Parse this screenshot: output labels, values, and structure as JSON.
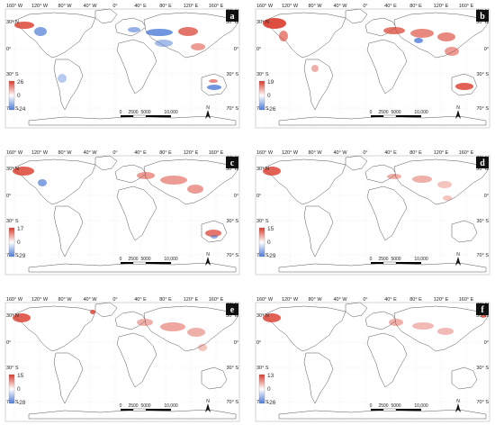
{
  "top_lon_labels": [
    "160° W",
    "120° W",
    "80° W",
    "40° W",
    "0°",
    "40° E",
    "80° E",
    "120° E",
    "160° E"
  ],
  "left_lat_labels": [
    "30° N",
    "0°",
    "30° S",
    "70° S"
  ],
  "right_lat_labels": [
    "70° N",
    "30° N",
    "0°",
    "30° S",
    "70° S"
  ],
  "scale_labels": [
    "0",
    "2500",
    "5000",
    "10,000"
  ],
  "north_label": "N",
  "colors": {
    "positive": "#d93a2b",
    "negative": "#4d7bd6",
    "land_outline": "#555555"
  },
  "panels": [
    {
      "id": "a",
      "letter": "a",
      "legend": {
        "max": "26",
        "mid": "0",
        "min": "-24"
      }
    },
    {
      "id": "b",
      "letter": "b",
      "legend": {
        "max": "19",
        "mid": "0",
        "min": "-26"
      }
    },
    {
      "id": "c",
      "letter": "c",
      "legend": {
        "max": "17",
        "mid": "0",
        "min": "-29"
      }
    },
    {
      "id": "d",
      "letter": "d",
      "legend": {
        "max": "15",
        "mid": "0",
        "min": "-29"
      }
    },
    {
      "id": "e",
      "letter": "e",
      "legend": {
        "max": "15",
        "mid": "0",
        "min": "-28"
      }
    },
    {
      "id": "f",
      "letter": "f",
      "legend": {
        "max": "13",
        "mid": "0",
        "min": "-26"
      }
    }
  ]
}
